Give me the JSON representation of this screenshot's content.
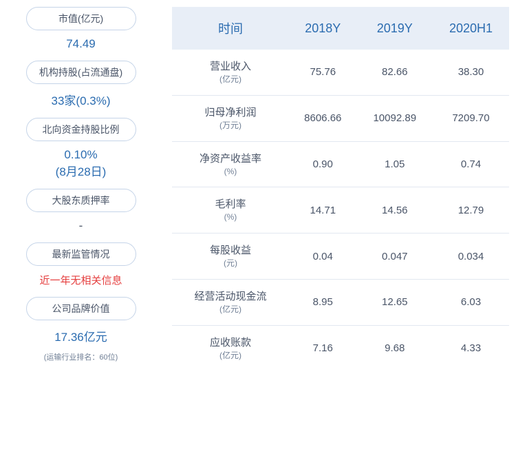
{
  "left_cards": [
    {
      "label": "市值(亿元)",
      "value": "74.49",
      "type": "blue"
    },
    {
      "label": "机构持股(占流通盘)",
      "value": "33家(0.3%)",
      "type": "blue"
    },
    {
      "label": "北向资金持股比例",
      "value": "0.10%",
      "sub_value": "(8月28日)",
      "type": "blue"
    },
    {
      "label": "大股东质押率",
      "value": "-",
      "type": "dash"
    },
    {
      "label": "最新监管情况",
      "value": "近一年无相关信息",
      "type": "red"
    },
    {
      "label": "公司品牌价值",
      "value": "17.36亿元",
      "sub": "(运输行业排名：60位)",
      "type": "blue"
    }
  ],
  "table": {
    "headers": [
      "时间",
      "2018Y",
      "2019Y",
      "2020H1"
    ],
    "rows": [
      {
        "label": "营业收入",
        "unit": "(亿元)",
        "cells": [
          "75.76",
          "82.66",
          "38.30"
        ]
      },
      {
        "label": "归母净利润",
        "unit": "(万元)",
        "cells": [
          "8606.66",
          "10092.89",
          "7209.70"
        ]
      },
      {
        "label": "净资产收益率",
        "unit": "(%)",
        "cells": [
          "0.90",
          "1.05",
          "0.74"
        ]
      },
      {
        "label": "毛利率",
        "unit": "(%)",
        "cells": [
          "14.71",
          "14.56",
          "12.79"
        ]
      },
      {
        "label": "每股收益",
        "unit": "(元)",
        "cells": [
          "0.04",
          "0.047",
          "0.034"
        ]
      },
      {
        "label": "经营活动现金流",
        "unit": "(亿元)",
        "cells": [
          "8.95",
          "12.65",
          "6.03"
        ]
      },
      {
        "label": "应收账款",
        "unit": "(亿元)",
        "cells": [
          "7.16",
          "9.68",
          "4.33"
        ]
      }
    ]
  },
  "colors": {
    "header_bg": "#e8eef7",
    "header_text": "#2b6cb0",
    "value_blue": "#2b6cb0",
    "value_red": "#e53e3e",
    "border": "#c5d4e8",
    "row_border": "#e2e8f0",
    "text": "#4a5568",
    "text_light": "#718096"
  }
}
